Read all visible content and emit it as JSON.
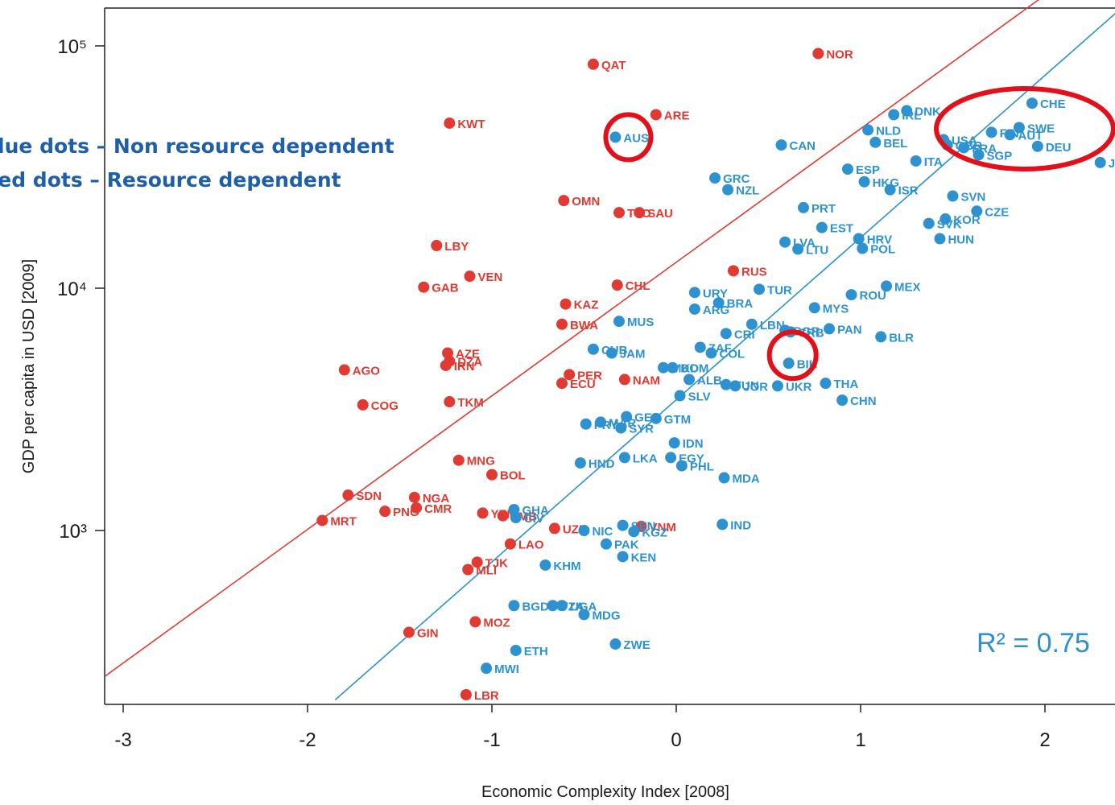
{
  "colors": {
    "blue": "#2e92d0",
    "red": "#e03a32",
    "legend_text": "#1f5fa8",
    "highlight_circle": "#e3101b"
  },
  "legend": {
    "blue": "Blue dots – Non resource dependent",
    "red": "Red dots – Resource dependent"
  },
  "annotation": {
    "r2": "R² = 0.75"
  },
  "highlights": [
    {
      "target": "AUS",
      "shape": "circle"
    },
    {
      "target": "BIH",
      "shape": "circle"
    },
    {
      "target": "CHE, FIN, SWE, AUT, DEU, USA, FRA, GBR, SGP, JPN",
      "shape": "ellipse"
    }
  ],
  "chart_data": {
    "type": "scatter",
    "title": "",
    "xlabel": "Economic Complexity Index [2008]",
    "ylabel": "GDP per capita in USD [2009]",
    "xlim": [
      -3.1,
      2.4
    ],
    "ylim": [
      180,
      160000
    ],
    "yscale": "log",
    "x_ticks": [
      "-3",
      "-2",
      "-1",
      "0",
      "1",
      "2"
    ],
    "y_ticks": [
      "10³",
      "10⁴",
      "10⁵"
    ],
    "grid": false,
    "legend_position": "top-left",
    "series": [
      {
        "name": "Resource dependent",
        "color": "#e03a32",
        "points": [
          {
            "label": "QAT",
            "x": -0.45,
            "y": 84000
          },
          {
            "label": "NOR",
            "x": 0.77,
            "y": 93000
          },
          {
            "label": "KWT",
            "x": -1.23,
            "y": 48000
          },
          {
            "label": "ARE",
            "x": -0.11,
            "y": 52000
          },
          {
            "label": "OMN",
            "x": -0.61,
            "y": 23000
          },
          {
            "label": "TTO",
            "x": -0.31,
            "y": 20500
          },
          {
            "label": "SAU",
            "x": -0.2,
            "y": 20500
          },
          {
            "label": "LBY",
            "x": -1.3,
            "y": 15000
          },
          {
            "label": "GAB",
            "x": -1.37,
            "y": 10100
          },
          {
            "label": "VEN",
            "x": -1.12,
            "y": 11200
          },
          {
            "label": "RUS",
            "x": 0.31,
            "y": 11800
          },
          {
            "label": "CHL",
            "x": -0.32,
            "y": 10300
          },
          {
            "label": "KAZ",
            "x": -0.6,
            "y": 8600
          },
          {
            "label": "BWA",
            "x": -0.62,
            "y": 7100
          },
          {
            "label": "AZE",
            "x": -1.24,
            "y": 5400
          },
          {
            "label": "DZA",
            "x": -1.23,
            "y": 5000
          },
          {
            "label": "IRN",
            "x": -1.25,
            "y": 4800
          },
          {
            "label": "AGO",
            "x": -1.8,
            "y": 4600
          },
          {
            "label": "PER",
            "x": -0.58,
            "y": 4400
          },
          {
            "label": "ECU",
            "x": -0.62,
            "y": 4050
          },
          {
            "label": "NAM",
            "x": -0.28,
            "y": 4200
          },
          {
            "label": "TKM",
            "x": -1.23,
            "y": 3400
          },
          {
            "label": "COG",
            "x": -1.7,
            "y": 3300
          },
          {
            "label": "MNG",
            "x": -1.18,
            "y": 1950
          },
          {
            "label": "BOL",
            "x": -1.0,
            "y": 1700
          },
          {
            "label": "SDN",
            "x": -1.78,
            "y": 1400
          },
          {
            "label": "NGA",
            "x": -1.42,
            "y": 1370
          },
          {
            "label": "MRT",
            "x": -1.92,
            "y": 1100
          },
          {
            "label": "PNG",
            "x": -1.58,
            "y": 1200
          },
          {
            "label": "CMR",
            "x": -1.41,
            "y": 1240
          },
          {
            "label": "YEM",
            "x": -1.05,
            "y": 1180
          },
          {
            "label": "ZMB",
            "x": -0.94,
            "y": 1150
          },
          {
            "label": "UZB",
            "x": -0.66,
            "y": 1020
          },
          {
            "label": "VNM",
            "x": -0.19,
            "y": 1040
          },
          {
            "label": "TJK",
            "x": -1.08,
            "y": 740
          },
          {
            "label": "MLI",
            "x": -1.13,
            "y": 690
          },
          {
            "label": "LAO",
            "x": -0.9,
            "y": 880
          },
          {
            "label": "GIN",
            "x": -1.45,
            "y": 380
          },
          {
            "label": "MOZ",
            "x": -1.09,
            "y": 420
          },
          {
            "label": "LBR",
            "x": -1.14,
            "y": 210
          }
        ]
      },
      {
        "name": "Non resource dependent",
        "color": "#2e92d0",
        "points": [
          {
            "label": "AUS",
            "x": -0.33,
            "y": 42000
          },
          {
            "label": "DNK",
            "x": 1.25,
            "y": 54000
          },
          {
            "label": "CHE",
            "x": 1.93,
            "y": 58000
          },
          {
            "label": "NLD",
            "x": 1.04,
            "y": 45000
          },
          {
            "label": "IRL",
            "x": 1.18,
            "y": 52000
          },
          {
            "label": "BEL",
            "x": 1.08,
            "y": 40000
          },
          {
            "label": "SWE",
            "x": 1.86,
            "y": 46000
          },
          {
            "label": "FIN",
            "x": 1.71,
            "y": 44000
          },
          {
            "label": "USA",
            "x": 1.45,
            "y": 41000
          },
          {
            "label": "FRA",
            "x": 1.56,
            "y": 38000
          },
          {
            "label": "AUT",
            "x": 1.81,
            "y": 43000
          },
          {
            "label": "GBR",
            "x": 1.47,
            "y": 39000
          },
          {
            "label": "DEU",
            "x": 1.96,
            "y": 38500
          },
          {
            "label": "JPN",
            "x": 2.3,
            "y": 33000
          },
          {
            "label": "SGP",
            "x": 1.64,
            "y": 35500
          },
          {
            "label": "ITA",
            "x": 1.3,
            "y": 33500
          },
          {
            "label": "CAN",
            "x": 0.57,
            "y": 39000
          },
          {
            "label": "ESP",
            "x": 0.93,
            "y": 31000
          },
          {
            "label": "HKG",
            "x": 1.02,
            "y": 27500
          },
          {
            "label": "ISR",
            "x": 1.16,
            "y": 25500
          },
          {
            "label": "GRC",
            "x": 0.21,
            "y": 28500
          },
          {
            "label": "NZL",
            "x": 0.28,
            "y": 25500
          },
          {
            "label": "SVN",
            "x": 1.5,
            "y": 24000
          },
          {
            "label": "PRT",
            "x": 0.69,
            "y": 21500
          },
          {
            "label": "KOR",
            "x": 1.46,
            "y": 19300
          },
          {
            "label": "SVK",
            "x": 1.37,
            "y": 18500
          },
          {
            "label": "CZE",
            "x": 1.63,
            "y": 20800
          },
          {
            "label": "EST",
            "x": 0.79,
            "y": 17800
          },
          {
            "label": "HUN",
            "x": 1.43,
            "y": 16000
          },
          {
            "label": "LVA",
            "x": 0.59,
            "y": 15500
          },
          {
            "label": "HRV",
            "x": 0.99,
            "y": 16000
          },
          {
            "label": "LTU",
            "x": 0.66,
            "y": 14500
          },
          {
            "label": "POL",
            "x": 1.01,
            "y": 14600
          },
          {
            "label": "URY",
            "x": 0.1,
            "y": 9600
          },
          {
            "label": "TUR",
            "x": 0.45,
            "y": 9900
          },
          {
            "label": "MEX",
            "x": 1.14,
            "y": 10200
          },
          {
            "label": "ROU",
            "x": 0.95,
            "y": 9400
          },
          {
            "label": "BRA",
            "x": 0.23,
            "y": 8700
          },
          {
            "label": "ARG",
            "x": 0.1,
            "y": 8200
          },
          {
            "label": "MUS",
            "x": -0.31,
            "y": 7300
          },
          {
            "label": "MYS",
            "x": 0.75,
            "y": 8300
          },
          {
            "label": "LBN",
            "x": 0.41,
            "y": 7100
          },
          {
            "label": "BGR",
            "x": 0.59,
            "y": 6700
          },
          {
            "label": "PAN",
            "x": 0.83,
            "y": 6800
          },
          {
            "label": "SRB",
            "x": 0.62,
            "y": 6600
          },
          {
            "label": "BLR",
            "x": 1.11,
            "y": 6300
          },
          {
            "label": "ZAF",
            "x": 0.13,
            "y": 5700
          },
          {
            "label": "CRI",
            "x": 0.27,
            "y": 6500
          },
          {
            "label": "CUB",
            "x": -0.45,
            "y": 5600
          },
          {
            "label": "JAM",
            "x": -0.35,
            "y": 5400
          },
          {
            "label": "COL",
            "x": 0.19,
            "y": 5400
          },
          {
            "label": "MKD",
            "x": -0.07,
            "y": 4700
          },
          {
            "label": "DOM",
            "x": -0.02,
            "y": 4700
          },
          {
            "label": "BIH",
            "x": 0.61,
            "y": 4900
          },
          {
            "label": "ALB",
            "x": 0.07,
            "y": 4200
          },
          {
            "label": "TUN",
            "x": 0.27,
            "y": 4000
          },
          {
            "label": "JOR",
            "x": 0.32,
            "y": 3950
          },
          {
            "label": "UKR",
            "x": 0.55,
            "y": 3950
          },
          {
            "label": "THA",
            "x": 0.81,
            "y": 4050
          },
          {
            "label": "SLV",
            "x": 0.02,
            "y": 3600
          },
          {
            "label": "CHN",
            "x": 0.9,
            "y": 3450
          },
          {
            "label": "MAR",
            "x": -0.41,
            "y": 2800
          },
          {
            "label": "GEO",
            "x": -0.27,
            "y": 2950
          },
          {
            "label": "PRY",
            "x": -0.49,
            "y": 2750
          },
          {
            "label": "GTM",
            "x": -0.11,
            "y": 2900
          },
          {
            "label": "SYR",
            "x": -0.3,
            "y": 2650
          },
          {
            "label": "IDN",
            "x": -0.01,
            "y": 2300
          },
          {
            "label": "LKA",
            "x": -0.28,
            "y": 2000
          },
          {
            "label": "EGY",
            "x": -0.03,
            "y": 2000
          },
          {
            "label": "PHL",
            "x": 0.03,
            "y": 1850
          },
          {
            "label": "HND",
            "x": -0.52,
            "y": 1900
          },
          {
            "label": "MDA",
            "x": 0.26,
            "y": 1650
          },
          {
            "label": "GHA",
            "x": -0.88,
            "y": 1220
          },
          {
            "label": "CIV",
            "x": -0.87,
            "y": 1130
          },
          {
            "label": "NIC",
            "x": -0.5,
            "y": 1000
          },
          {
            "label": "SEN",
            "x": -0.29,
            "y": 1050
          },
          {
            "label": "KGZ",
            "x": -0.23,
            "y": 990
          },
          {
            "label": "IND",
            "x": 0.25,
            "y": 1060
          },
          {
            "label": "PAK",
            "x": -0.38,
            "y": 880
          },
          {
            "label": "KHM",
            "x": -0.71,
            "y": 720
          },
          {
            "label": "KEN",
            "x": -0.29,
            "y": 780
          },
          {
            "label": "BGD",
            "x": -0.88,
            "y": 490
          },
          {
            "label": "TZA",
            "x": -0.67,
            "y": 490
          },
          {
            "label": "MDG",
            "x": -0.5,
            "y": 450
          },
          {
            "label": "UGA",
            "x": -0.62,
            "y": 490
          },
          {
            "label": "ZWE",
            "x": -0.33,
            "y": 340
          },
          {
            "label": "ETH",
            "x": -0.87,
            "y": 320
          },
          {
            "label": "MWI",
            "x": -1.03,
            "y": 270
          }
        ]
      }
    ],
    "fit_lines": [
      {
        "series": "Resource dependent",
        "color": "#e03a32",
        "x": [
          -3.1,
          1.99
        ],
        "y": [
          250,
          160000
        ]
      },
      {
        "series": "Non resource dependent",
        "color": "#2e92d0",
        "x": [
          -1.85,
          2.4
        ],
        "y": [
          200,
          140000
        ]
      }
    ]
  }
}
